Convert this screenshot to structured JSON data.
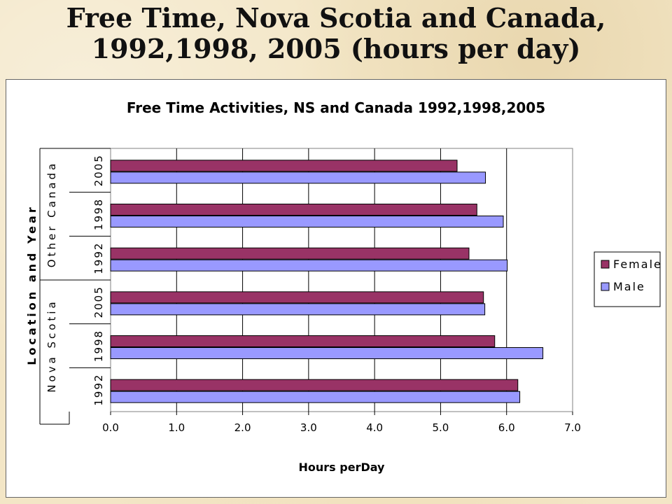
{
  "slide": {
    "title_line1": "Free Time, Nova Scotia and Canada,",
    "title_line2": "1992,1998, 2005 (hours per day)"
  },
  "chart_data": {
    "type": "bar",
    "orientation": "horizontal",
    "title": "Free Time Activities, NS and Canada 1992,1998,2005",
    "xlabel": "Hours perDay",
    "ylabel": "Location and Year",
    "xlim": [
      0,
      7
    ],
    "xticks": [
      "0.0",
      "1.0",
      "2.0",
      "3.0",
      "4.0",
      "5.0",
      "6.0",
      "7.0"
    ],
    "groups": [
      {
        "label": "Nova Scotia",
        "categories": [
          "1992",
          "1998",
          "2005"
        ]
      },
      {
        "label": "Other Canada",
        "categories": [
          "1992",
          "1998",
          "2005"
        ]
      }
    ],
    "categories": [
      "Nova Scotia 1992",
      "Nova Scotia 1998",
      "Nova Scotia 2005",
      "Other Canada 1992",
      "Other Canada 1998",
      "Other Canada 2005"
    ],
    "series": [
      {
        "name": "Female",
        "color": "#993366",
        "values": [
          6.17,
          5.82,
          5.65,
          5.43,
          5.55,
          5.25
        ]
      },
      {
        "name": "Male",
        "color": "#9999ff",
        "values": [
          6.2,
          6.55,
          5.67,
          6.01,
          5.95,
          5.68
        ]
      }
    ],
    "grid": "vertical",
    "legend_position": "right"
  }
}
